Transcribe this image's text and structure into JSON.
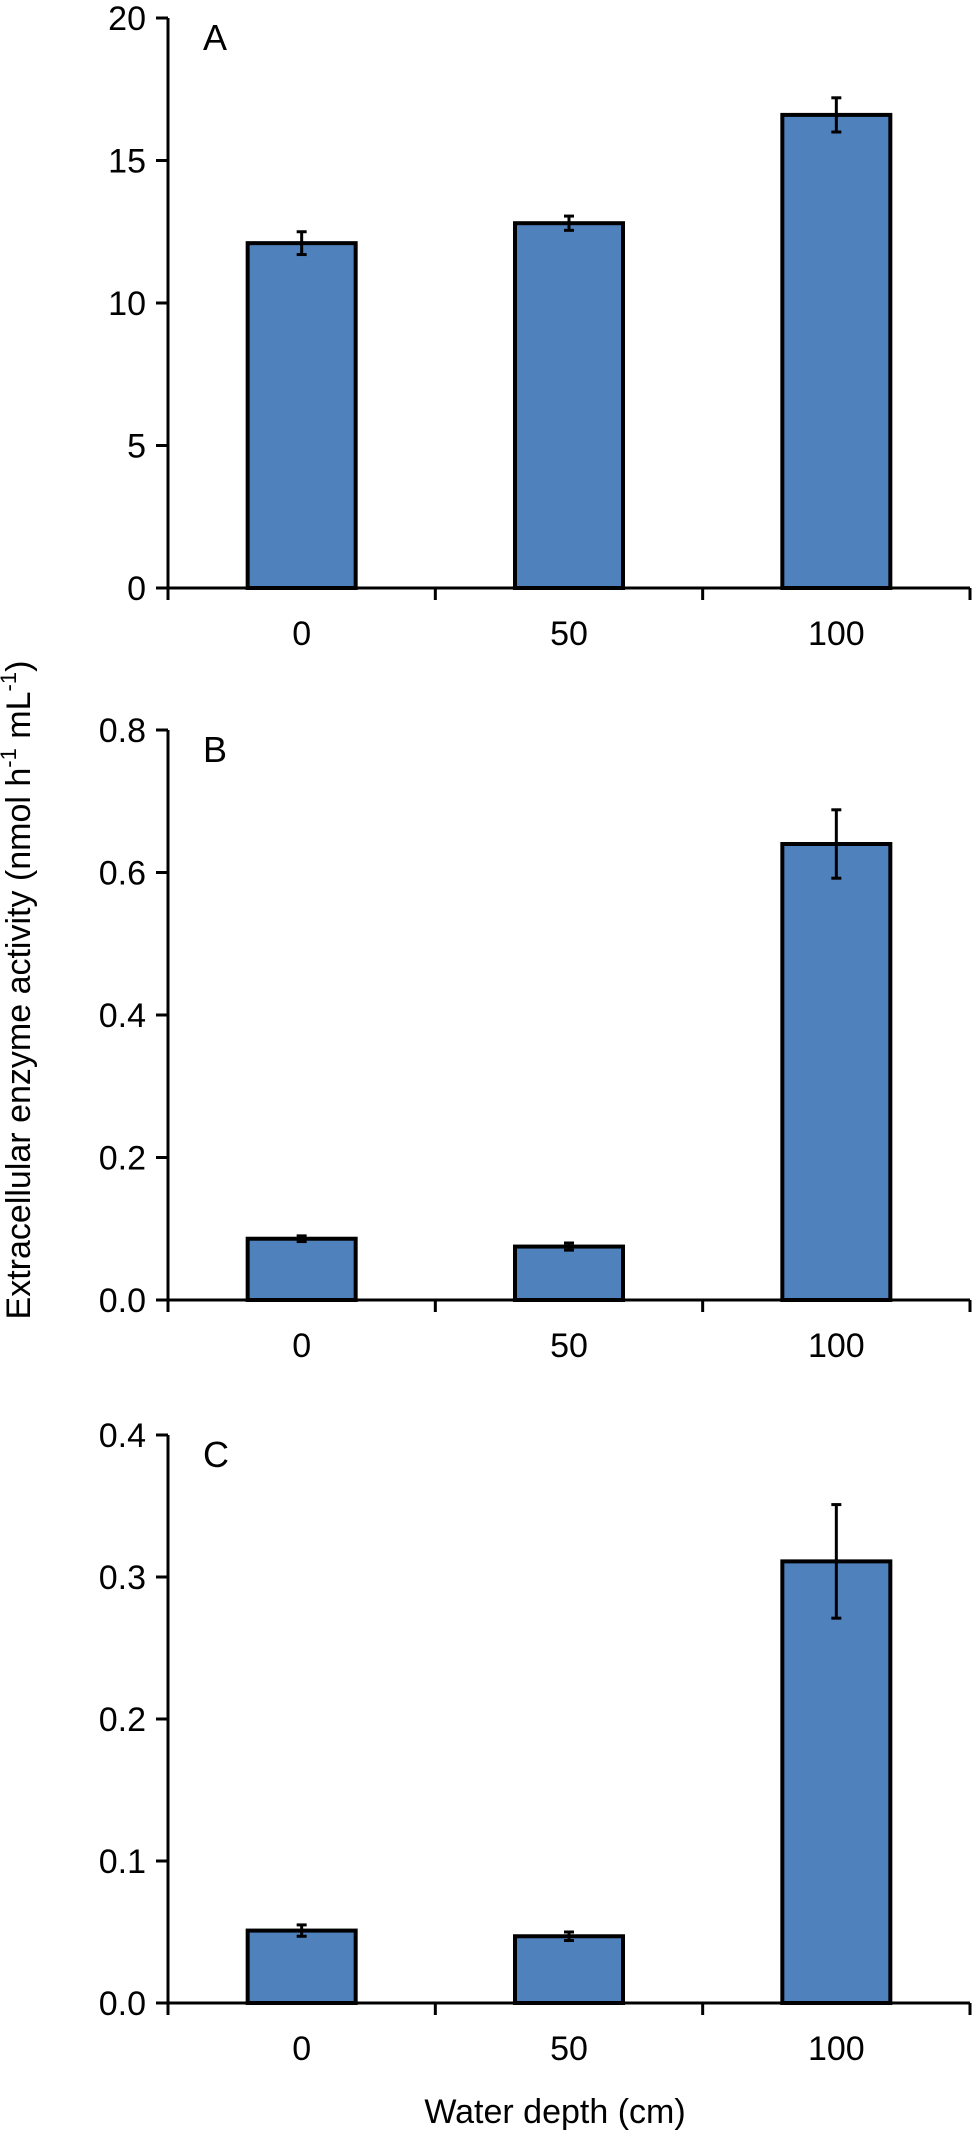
{
  "ylabel": {
    "prefix": "Extracellular enzyme activity (nmol h",
    "sup1": "-1",
    "middle": " mL",
    "sup2": "-1",
    "suffix": ")"
  },
  "xlabel": "Water depth (cm)",
  "colors": {
    "bar": "#4f81bd",
    "edge": "#000000"
  },
  "chart_data": [
    {
      "type": "bar",
      "panel": "A",
      "categories": [
        "0",
        "50",
        "100"
      ],
      "values": [
        12.1,
        12.8,
        16.6
      ],
      "errors": [
        0.4,
        0.25,
        0.6
      ],
      "ylim": [
        0,
        20
      ],
      "yticks": [
        "0",
        "5",
        "10",
        "15",
        "20"
      ],
      "ytick_values": [
        0,
        5,
        10,
        15,
        20
      ]
    },
    {
      "type": "bar",
      "panel": "B",
      "categories": [
        "0",
        "50",
        "100"
      ],
      "values": [
        0.086,
        0.075,
        0.64
      ],
      "errors": [
        0.004,
        0.005,
        0.048
      ],
      "ylim": [
        0,
        0.8
      ],
      "yticks": [
        "0.0",
        "0.2",
        "0.4",
        "0.6",
        "0.8"
      ],
      "ytick_values": [
        0,
        0.2,
        0.4,
        0.6,
        0.8
      ]
    },
    {
      "type": "bar",
      "panel": "C",
      "categories": [
        "0",
        "50",
        "100"
      ],
      "values": [
        0.051,
        0.047,
        0.311
      ],
      "errors": [
        0.004,
        0.003,
        0.04
      ],
      "ylim": [
        0,
        0.4
      ],
      "yticks": [
        "0.0",
        "0.1",
        "0.2",
        "0.3",
        "0.4"
      ],
      "ytick_values": [
        0,
        0.1,
        0.2,
        0.3,
        0.4
      ]
    }
  ]
}
